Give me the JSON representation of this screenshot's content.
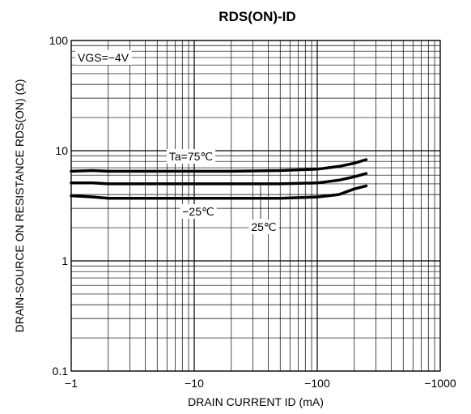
{
  "chart_data": {
    "type": "line",
    "title": "RDS(ON)-ID",
    "xlabel": "DRAIN CURRENT ID (mA)",
    "ylabel": "DRAIN-SOURCE ON RESISTANCE RDS(ON) (Ω)",
    "x_scale": "log",
    "y_scale": "log",
    "xlim": [
      -1,
      -1000
    ],
    "ylim": [
      0.1,
      100
    ],
    "x_ticks": [
      {
        "value": -1,
        "label": "−1"
      },
      {
        "value": -10,
        "label": "−10"
      },
      {
        "value": -100,
        "label": "−100"
      },
      {
        "value": -1000,
        "label": "−1000"
      }
    ],
    "y_ticks": [
      {
        "value": 0.1,
        "label": "0.1"
      },
      {
        "value": 1,
        "label": "1"
      },
      {
        "value": 10,
        "label": "10"
      },
      {
        "value": 100,
        "label": "100"
      }
    ],
    "grid": true,
    "condition": "VGS=−4V",
    "series": [
      {
        "name": "Ta=75℃",
        "x": [
          -1,
          -1.5,
          -2,
          -3,
          -5,
          -10,
          -20,
          -50,
          -100,
          -150,
          -200,
          -250
        ],
        "values": [
          6.5,
          6.6,
          6.5,
          6.5,
          6.5,
          6.5,
          6.5,
          6.6,
          6.8,
          7.2,
          7.7,
          8.3
        ]
      },
      {
        "name": "25℃",
        "x": [
          -1,
          -1.5,
          -2,
          -3,
          -5,
          -10,
          -20,
          -50,
          -100,
          -150,
          -200,
          -250
        ],
        "values": [
          5.1,
          5.1,
          5.0,
          5.0,
          5.0,
          5.0,
          5.0,
          5.0,
          5.1,
          5.4,
          5.8,
          6.2
        ]
      },
      {
        "name": "−25℃",
        "x": [
          -1,
          -1.5,
          -2,
          -3,
          -5,
          -10,
          -20,
          -50,
          -100,
          -150,
          -200,
          -250
        ],
        "values": [
          3.9,
          3.8,
          3.7,
          3.7,
          3.7,
          3.7,
          3.7,
          3.7,
          3.8,
          4.0,
          4.5,
          4.8
        ]
      }
    ],
    "annotations": [
      {
        "text": "Ta=75℃",
        "series": "Ta=75℃"
      },
      {
        "text": "−25℃",
        "series": "−25℃"
      },
      {
        "text": "25℃",
        "series": "25℃"
      }
    ],
    "colors": {
      "line": "#000000",
      "grid": "#000000",
      "background": "#ffffff"
    }
  }
}
